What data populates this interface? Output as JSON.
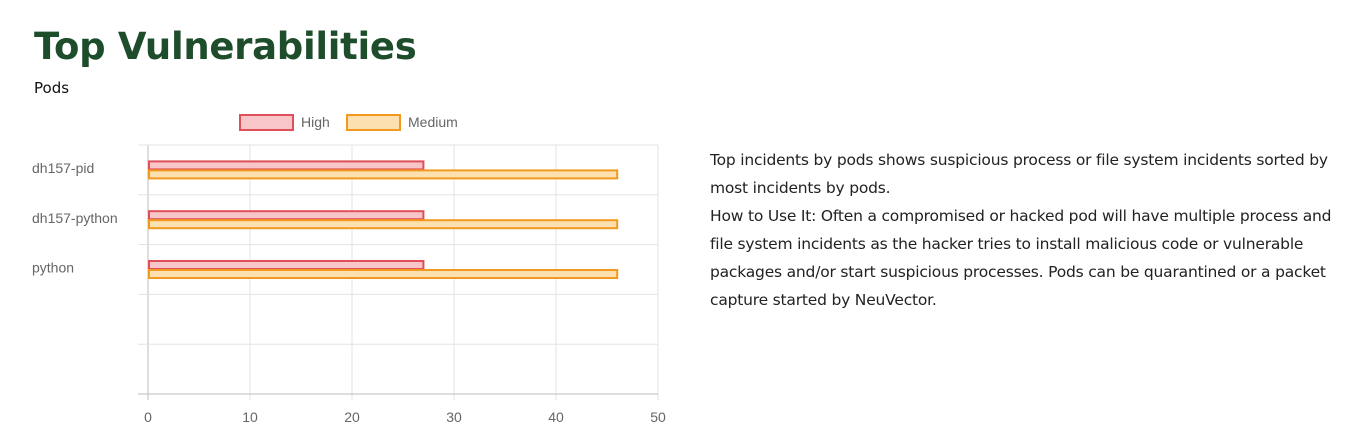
{
  "header": {
    "title": "Top Vulnerabilities",
    "subtitle": "Pods"
  },
  "description": {
    "line1": "Top incidents by pods shows suspicious process or file system incidents sorted by most incidents by pods.",
    "line2": "How to Use It: Often a compromised or hacked pod will have multiple process and file system incidents as the hacker tries to install malicious code or vulnerable packages and/or start suspicious processes. Pods can be quarantined or a packet capture started by NeuVector."
  },
  "colors": {
    "high_fill": "#f8c5c8",
    "high_border": "#e0505a",
    "medium_fill": "#fde0b0",
    "medium_border": "#f29a1f",
    "title": "#1e4d2b"
  },
  "chart_data": {
    "type": "bar",
    "orientation": "horizontal",
    "categories": [
      "dh157-pid",
      "dh157-python",
      "python"
    ],
    "series": [
      {
        "name": "High",
        "values": [
          27,
          27,
          27
        ]
      },
      {
        "name": "Medium",
        "values": [
          46,
          46,
          46
        ]
      }
    ],
    "xlim": [
      0,
      50
    ],
    "xticks": [
      0,
      10,
      20,
      30,
      40,
      50
    ],
    "legend": "top",
    "grid": true
  }
}
